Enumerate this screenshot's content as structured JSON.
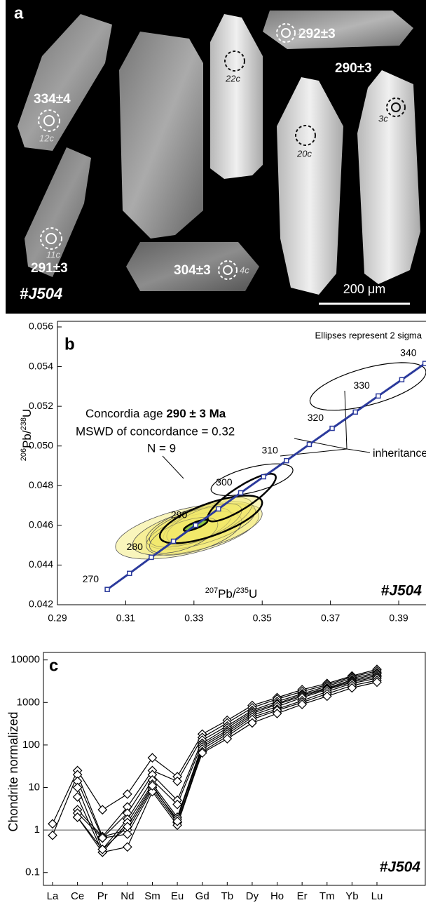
{
  "image_panel": {
    "letter": "a",
    "sample": "#J504",
    "scale_bar": "200 μm",
    "ages": [
      "334±4",
      "291±3",
      "304±3",
      "292±3",
      "290±3"
    ],
    "spots": [
      "12c",
      "11c",
      "4c",
      "22c",
      "1c",
      "20c",
      "3c"
    ]
  },
  "chart_data": [
    {
      "type": "concordia",
      "letter": "b",
      "note": "Ellipses represent 2 sigma",
      "sample": "#J504",
      "xlabel": [
        "207",
        "Pb/",
        "235",
        "U"
      ],
      "ylabel": [
        "206",
        "Pb/",
        "238",
        "U"
      ],
      "xlim": [
        0.29,
        0.398
      ],
      "ylim": [
        0.042,
        0.056
      ],
      "xticks": [
        0.29,
        0.31,
        0.33,
        0.35,
        0.37,
        0.39
      ],
      "yticks": [
        0.042,
        0.044,
        0.046,
        0.048,
        {
          "value": 0.05,
          "label": "0.050"
        },
        0.052,
        0.054,
        0.056
      ],
      "concordia": {
        "color": "#2b3a9c",
        "x": [
          0.3046,
          0.3111,
          0.3175,
          0.324,
          0.3305,
          0.3372,
          0.3437,
          0.3504,
          0.3571,
          0.3638,
          0.3705,
          0.3773,
          0.384,
          0.3909,
          0.3977
        ],
        "y": [
          0.04277,
          0.04358,
          0.04439,
          0.0452,
          0.04601,
          0.04683,
          0.04764,
          0.04845,
          0.04926,
          0.05008,
          0.05089,
          0.05171,
          0.05252,
          0.05334,
          0.05416
        ],
        "labels": [
          270,
          null,
          280,
          null,
          290,
          null,
          300,
          null,
          310,
          null,
          320,
          null,
          330,
          null,
          340
        ]
      },
      "ellipse_fill": "#f2e96b",
      "ellipse_stroke": "#555555",
      "inheritance_stroke": "#000000",
      "ellipses": [
        {
          "x": 0.328,
          "y": 0.0457,
          "sx": 0.021,
          "sy": 0.0014,
          "rho": 0.55
        },
        {
          "x": 0.331,
          "y": 0.0458,
          "sx": 0.019,
          "sy": 0.0013,
          "rho": 0.6
        },
        {
          "x": 0.332,
          "y": 0.046,
          "sx": 0.016,
          "sy": 0.0012,
          "rho": 0.6
        },
        {
          "x": 0.33,
          "y": 0.0456,
          "sx": 0.014,
          "sy": 0.0011,
          "rho": 0.55
        },
        {
          "x": 0.334,
          "y": 0.0462,
          "sx": 0.013,
          "sy": 0.0012,
          "rho": 0.7
        },
        {
          "x": 0.329,
          "y": 0.0459,
          "sx": 0.012,
          "sy": 0.001,
          "rho": 0.6
        },
        {
          "x": 0.333,
          "y": 0.0461,
          "sx": 0.011,
          "sy": 0.001,
          "rho": 0.65
        },
        {
          "x": 0.327,
          "y": 0.0455,
          "sx": 0.01,
          "sy": 0.0009,
          "rho": 0.6
        },
        {
          "x": 0.335,
          "y": 0.0463,
          "sx": 0.015,
          "sy": 0.0012,
          "rho": 0.7,
          "bold": true
        }
      ],
      "inheritance": [
        {
          "x": 0.381,
          "y": 0.053,
          "sx": 0.017,
          "sy": 0.0012,
          "rho": 0.6
        },
        {
          "x": 0.347,
          "y": 0.0483,
          "sx": 0.012,
          "sy": 0.0008,
          "rho": 0.6
        },
        {
          "x": 0.344,
          "y": 0.0474,
          "sx": 0.01,
          "sy": 0.0012,
          "rho": 0.85,
          "bold": true
        }
      ],
      "concordia_age": {
        "x": 0.3305,
        "y": 0.046,
        "sx": 0.0035,
        "sy": 0.00028,
        "rho": 0.8,
        "color": "#8cc63f"
      },
      "annotations": {
        "age_prefix": "Concordia age",
        "age": "290 ± 3 Ma",
        "mswd": "MSWD of concordance = 0.32",
        "n": "N = 9",
        "inheritance": "inheritance"
      }
    },
    {
      "type": "line",
      "letter": "c",
      "ylabel": "Chondrite normalized",
      "sample": "#J504",
      "log_scale": true,
      "categories": [
        "La",
        "Ce",
        "Pr",
        "Nd",
        "Sm",
        "Eu",
        "Gd",
        "Tb",
        "Dy",
        "Ho",
        "Er",
        "Tm",
        "Yb",
        "Lu"
      ],
      "ylim": [
        0.05,
        15000
      ],
      "yticks": [
        0.1,
        1,
        10,
        100,
        1000,
        10000
      ],
      "reference_line": 1,
      "marker": "diamond",
      "color": "#000000",
      "series": [
        {
          "values": [
            1.4,
            25,
            3,
            7,
            50,
            18,
            180,
            380,
            850,
            1300,
            2000,
            2800,
            4200,
            6000
          ]
        },
        {
          "values": [
            0.75,
            20,
            0.7,
            3.5,
            25,
            14,
            150,
            330,
            750,
            1200,
            1800,
            2600,
            4000,
            5500
          ]
        },
        {
          "values": [
            null,
            14,
            0.65,
            2.5,
            20,
            5,
            130,
            280,
            650,
            1050,
            1600,
            2400,
            3700,
            5000
          ]
        },
        {
          "values": [
            null,
            10,
            0.35,
            1.8,
            15,
            4,
            110,
            250,
            600,
            950,
            1500,
            2200,
            3400,
            4700
          ]
        },
        {
          "values": [
            null,
            6,
            0.3,
            1.5,
            12,
            2,
            100,
            220,
            550,
            900,
            1400,
            2100,
            3200,
            4300
          ]
        },
        {
          "values": [
            null,
            3,
            0.7,
            1,
            10,
            1.8,
            90,
            200,
            500,
            800,
            1300,
            2000,
            3000,
            4000
          ]
        },
        {
          "values": [
            null,
            2.5,
            0.65,
            0.8,
            9,
            1.5,
            80,
            180,
            450,
            700,
            1100,
            1800,
            2800,
            3700
          ]
        },
        {
          "values": [
            null,
            2,
            0.3,
            0.4,
            8,
            1.3,
            70,
            160,
            400,
            650,
            1000,
            1600,
            2500,
            3300
          ]
        },
        {
          "values": [
            null,
            2,
            0.35,
            1.2,
            11,
            1.6,
            65,
            140,
            330,
            550,
            900,
            1400,
            2200,
            3000
          ]
        }
      ]
    }
  ]
}
